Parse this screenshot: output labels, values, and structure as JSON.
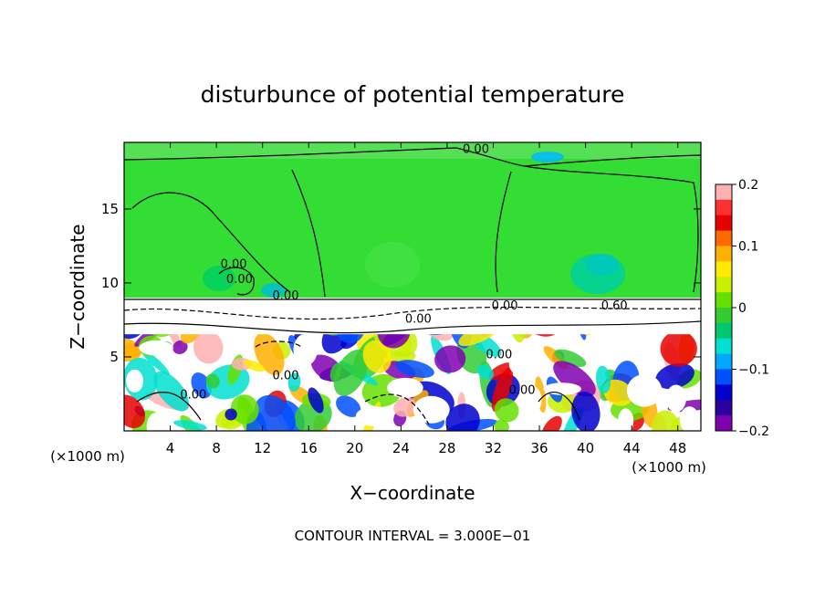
{
  "chart_data": {
    "type": "heatmap",
    "title": "disturbunce of potential temperature",
    "xlabel": "X−coordinate",
    "ylabel": "Z−coordinate",
    "x_unit_left": "(×1000 m)",
    "x_unit_right": "(×1000 m)",
    "footer": "CONTOUR INTERVAL = 3.000E−01",
    "xlim": [
      0,
      50
    ],
    "ylim": [
      0,
      19.5
    ],
    "x_ticks": [
      4,
      8,
      12,
      16,
      20,
      24,
      28,
      32,
      36,
      40,
      44,
      48
    ],
    "y_ticks": [
      5,
      10,
      15
    ],
    "inversion_z": 9.0,
    "colorbar": {
      "vmin": -0.2,
      "vmax": 0.2,
      "ticks": [
        0.2,
        0.1,
        0,
        -0.1,
        -0.2
      ],
      "tick_labels": [
        "0.2",
        "0.1",
        "0",
        "−0.1",
        "−0.2"
      ],
      "colors": [
        "#ffb0b0",
        "#ff3030",
        "#e80000",
        "#ff6a00",
        "#ffb000",
        "#ffea00",
        "#c8f000",
        "#66e000",
        "#33cc33",
        "#00c870",
        "#00e0d0",
        "#00a8ff",
        "#0050ff",
        "#0000cc",
        "#2a00a0",
        "#8000b0"
      ]
    },
    "contour_labels": [
      {
        "text": "0.00",
        "x": 30.5,
        "z": 18.8
      },
      {
        "text": "0.00",
        "x": 9.5,
        "z": 11.0
      },
      {
        "text": "0.00",
        "x": 10.0,
        "z": 10.0
      },
      {
        "text": "0.00",
        "x": 14.0,
        "z": 8.9
      },
      {
        "text": "0.00",
        "x": 25.5,
        "z": 7.3
      },
      {
        "text": "0.00",
        "x": 33.0,
        "z": 8.2
      },
      {
        "text": "0.60",
        "x": 42.5,
        "z": 8.2
      },
      {
        "text": "0.00",
        "x": 14.0,
        "z": 3.5
      },
      {
        "text": "0.00",
        "x": 32.5,
        "z": 4.9
      },
      {
        "text": "0.00",
        "x": 6.0,
        "z": 2.2
      },
      {
        "text": "0.00",
        "x": 34.5,
        "z": 2.5
      }
    ]
  }
}
